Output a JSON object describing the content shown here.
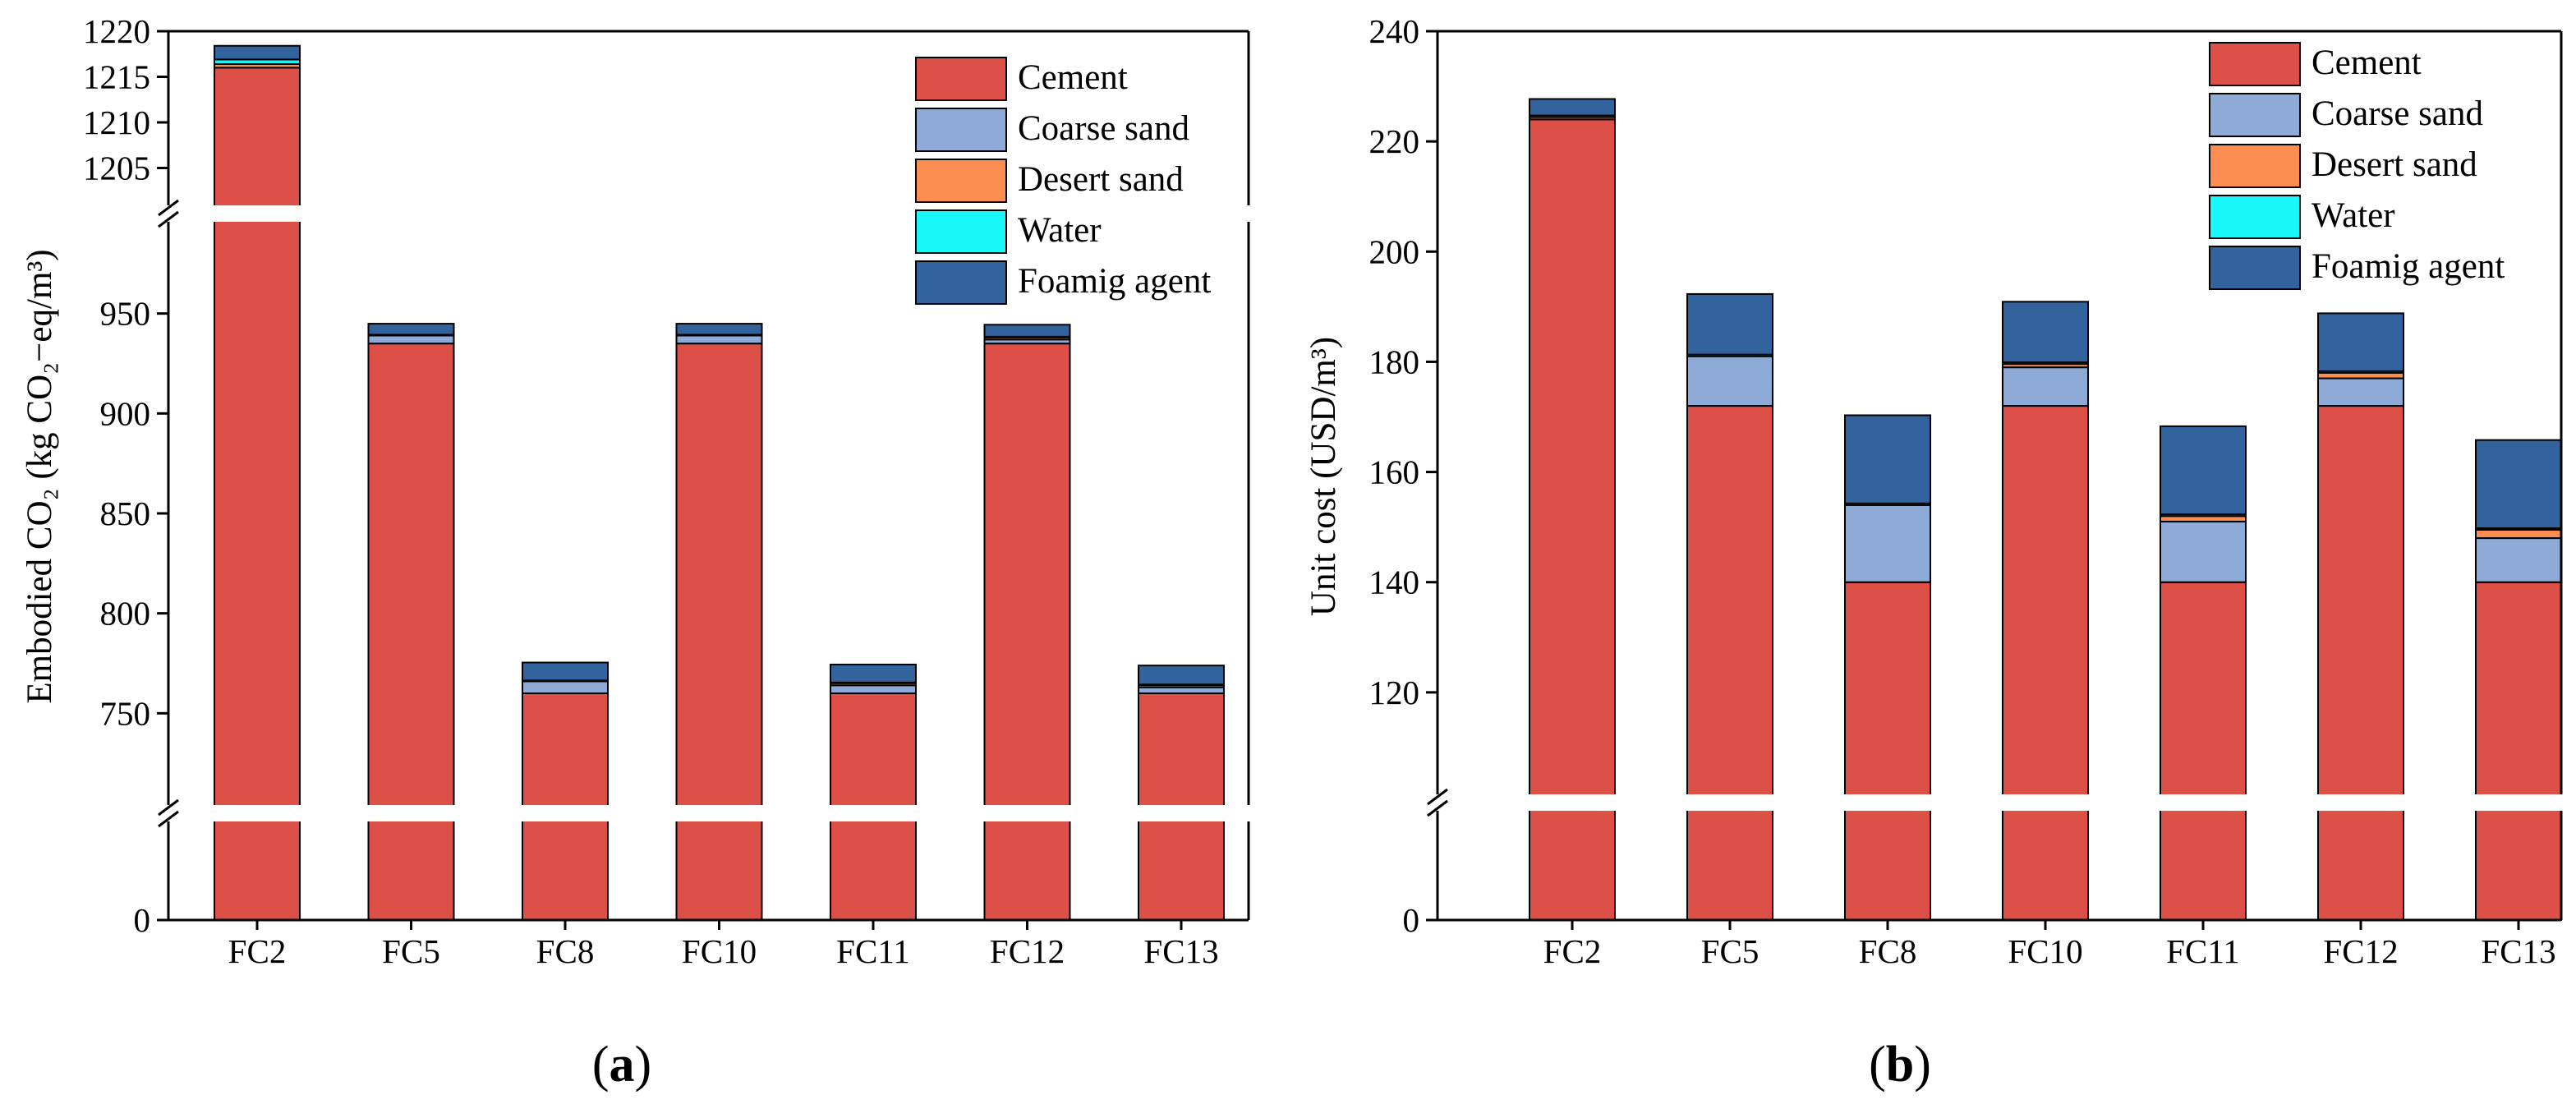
{
  "colors": {
    "Cement": "#dc5048",
    "Coarse sand": "#8eaad6",
    "Desert sand": "#fb8e50",
    "Water": "#19f7f9",
    "Foamig agent": "#33639c"
  },
  "chart_data": [
    {
      "type": "bar",
      "stacked": true,
      "broken_axis": true,
      "panel_label_open": "(",
      "panel_label_letter": "a",
      "panel_label_close": ")",
      "ylabel": "Embodied CO₂ (kg CO₂−eq/m³)",
      "categories": [
        "FC2",
        "FC5",
        "FC8",
        "FC10",
        "FC11",
        "FC12",
        "FC13"
      ],
      "ylim": [
        0,
        1220
      ],
      "axis_segments": [
        [
          0,
          0
        ],
        [
          700,
          1000
        ],
        [
          1200,
          1220
        ]
      ],
      "yticks": [
        0,
        750,
        800,
        850,
        900,
        950,
        1205,
        1210,
        1215,
        1220
      ],
      "legend_position": "top-right",
      "series": [
        {
          "name": "Cement",
          "values": [
            1216,
            935,
            760,
            935,
            760,
            935,
            760
          ]
        },
        {
          "name": "Coarse sand",
          "values": [
            0,
            4,
            6,
            4,
            4,
            2,
            3
          ]
        },
        {
          "name": "Desert sand",
          "values": [
            0.4,
            0,
            0,
            0,
            1,
            1,
            1
          ]
        },
        {
          "name": "Water",
          "values": [
            0.5,
            0.4,
            0.4,
            0.4,
            0.4,
            0.4,
            0.4
          ]
        },
        {
          "name": "Foamig agent",
          "values": [
            1.5,
            5.5,
            9,
            5.5,
            9,
            6,
            9.5
          ]
        }
      ]
    },
    {
      "type": "bar",
      "stacked": true,
      "broken_axis": true,
      "panel_label_open": "(",
      "panel_label_letter": "b",
      "panel_label_close": ")",
      "ylabel": "Unit cost (USD/m³)",
      "categories": [
        "FC2",
        "FC5",
        "FC8",
        "FC10",
        "FC11",
        "FC12",
        "FC13"
      ],
      "ylim": [
        0,
        240
      ],
      "axis_segments": [
        [
          0,
          0
        ],
        [
          100,
          240
        ]
      ],
      "yticks": [
        0,
        120,
        140,
        160,
        180,
        200,
        220,
        240
      ],
      "legend_position": "top-right",
      "series": [
        {
          "name": "Cement",
          "values": [
            224,
            172,
            140,
            172,
            140,
            172,
            140
          ]
        },
        {
          "name": "Coarse sand",
          "values": [
            0,
            9,
            14,
            7,
            11,
            5,
            8
          ]
        },
        {
          "name": "Desert sand",
          "values": [
            0.4,
            0,
            0,
            0.6,
            1,
            1,
            1.5
          ]
        },
        {
          "name": "Water",
          "values": [
            0.3,
            0.3,
            0.3,
            0.3,
            0.3,
            0.3,
            0.3
          ]
        },
        {
          "name": "Foamig agent",
          "values": [
            3,
            11,
            16,
            11,
            16,
            10.5,
            16
          ]
        }
      ]
    }
  ]
}
